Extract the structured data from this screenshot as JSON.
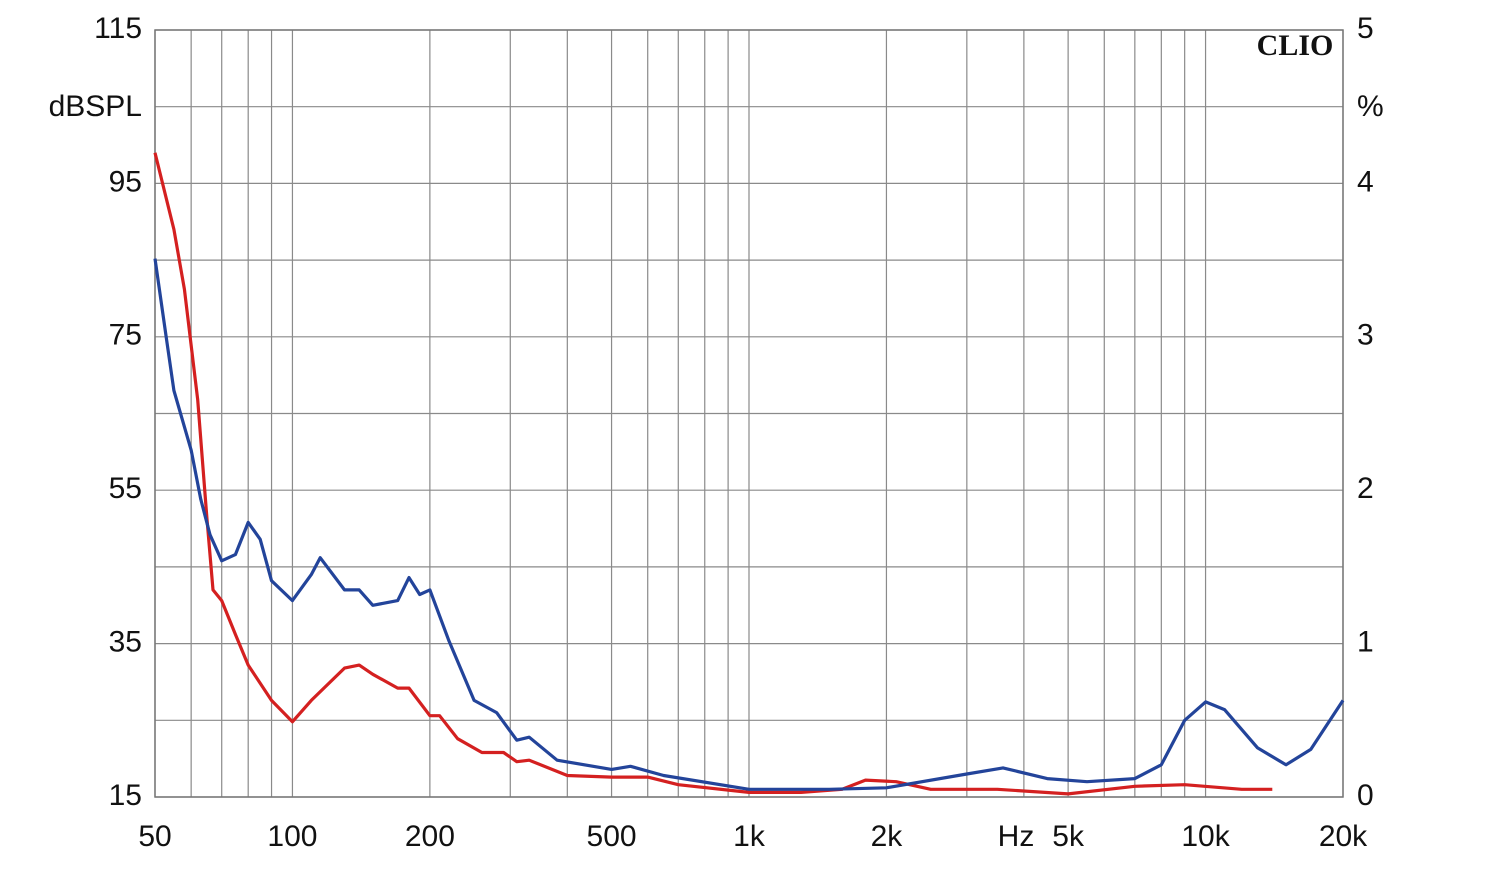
{
  "chart_data": {
    "type": "line",
    "watermark": "CLIO",
    "x_label": "Hz",
    "y_label": "dBSPL",
    "y2_label": "%",
    "log_x": true,
    "grid": true,
    "xlim": [
      50,
      20000
    ],
    "xticks": [
      50,
      100,
      200,
      500,
      {
        "value": 1000,
        "label": "1k"
      },
      {
        "value": 2000,
        "label": "2k"
      },
      {
        "value": 5000,
        "label": "5k"
      },
      {
        "value": 10000,
        "label": "10k"
      },
      {
        "value": 20000,
        "label": "20k"
      }
    ],
    "x_minor_grid": [
      60,
      70,
      80,
      90,
      300,
      400,
      600,
      700,
      800,
      900,
      3000,
      4000,
      6000,
      7000,
      8000,
      9000
    ],
    "ylim": [
      15,
      115
    ],
    "yticks": [
      15,
      35,
      55,
      75,
      95,
      115
    ],
    "y_minor_grid": [
      25,
      45,
      65,
      85,
      105
    ],
    "y2lim": [
      0,
      5
    ],
    "y2ticks": [
      0,
      1,
      2,
      3,
      4,
      5
    ],
    "series": [
      {
        "color": "#d42020",
        "axis": "y2",
        "x": [
          50,
          55,
          58,
          62,
          65,
          67,
          70,
          75,
          80,
          90,
          100,
          110,
          130,
          140,
          150,
          170,
          180,
          200,
          210,
          230,
          260,
          290,
          310,
          330,
          400,
          500,
          600,
          700,
          1000,
          1300,
          1600,
          1800,
          2100,
          2500,
          3500,
          5000,
          7000,
          9000,
          12000,
          14000
        ],
        "values": [
          4.2,
          3.7,
          3.31,
          2.59,
          1.81,
          1.35,
          1.28,
          1.06,
          0.86,
          0.63,
          0.49,
          0.63,
          0.84,
          0.86,
          0.8,
          0.71,
          0.71,
          0.53,
          0.53,
          0.38,
          0.29,
          0.29,
          0.23,
          0.24,
          0.14,
          0.13,
          0.13,
          0.08,
          0.03,
          0.03,
          0.05,
          0.11,
          0.1,
          0.05,
          0.05,
          0.02,
          0.07,
          0.08,
          0.05,
          0.05
        ]
      },
      {
        "color": "#23449a",
        "axis": "y2",
        "x": [
          50,
          53,
          55,
          60,
          63,
          66,
          70,
          75,
          80,
          85,
          90,
          100,
          110,
          115,
          130,
          140,
          150,
          170,
          180,
          190,
          200,
          220,
          250,
          280,
          310,
          330,
          380,
          500,
          550,
          650,
          1000,
          1500,
          2000,
          3000,
          3600,
          4500,
          5500,
          7000,
          8000,
          9000,
          10000,
          11000,
          13000,
          15000,
          17000,
          20000
        ],
        "values": [
          3.51,
          2.98,
          2.65,
          2.26,
          1.94,
          1.71,
          1.54,
          1.58,
          1.79,
          1.68,
          1.41,
          1.28,
          1.45,
          1.56,
          1.35,
          1.35,
          1.25,
          1.28,
          1.43,
          1.32,
          1.35,
          1.02,
          0.63,
          0.55,
          0.37,
          0.39,
          0.24,
          0.18,
          0.2,
          0.14,
          0.05,
          0.05,
          0.06,
          0.15,
          0.19,
          0.12,
          0.1,
          0.12,
          0.21,
          0.5,
          0.62,
          0.57,
          0.32,
          0.21,
          0.31,
          0.63
        ]
      }
    ]
  }
}
